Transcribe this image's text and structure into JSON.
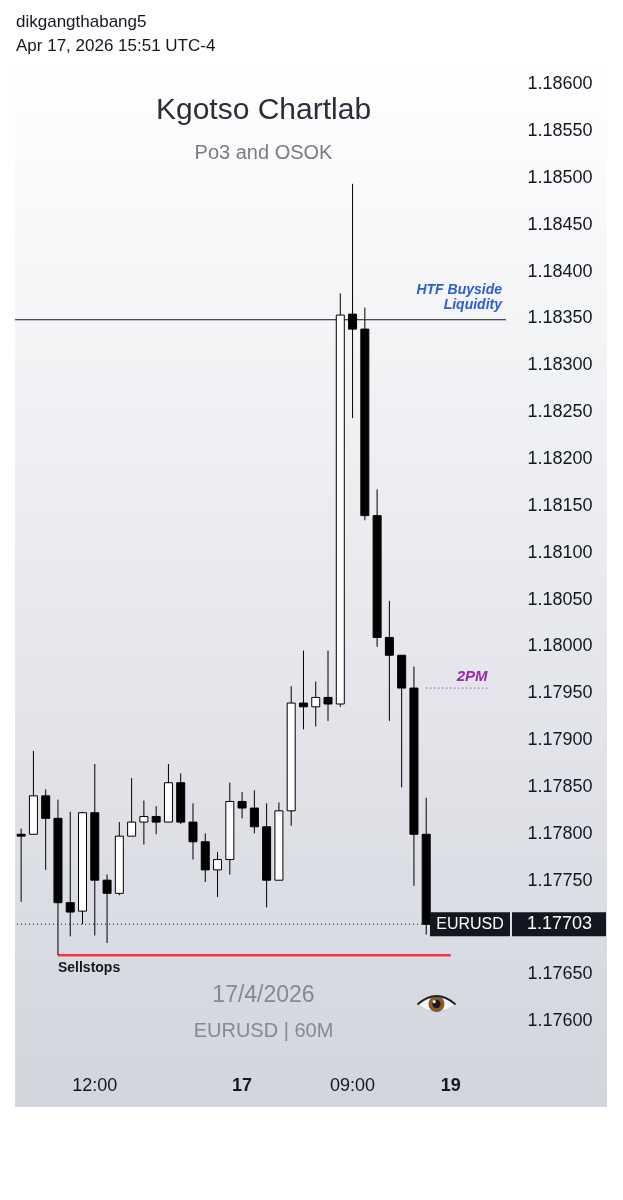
{
  "chart_data": {
    "type": "candlestick",
    "title": "Kgotso Chartlab",
    "subtitle": "Po3 and OSOK",
    "annotations": [
      "dikgangthabang5",
      "Apr 17, 2026 15:51 UTC-4",
      "17/4/2026",
      "EURUSD | 60M",
      "1.17703",
      "Sellstops"
    ],
    "categories": [
      null,
      null,
      null,
      null,
      null,
      null,
      "12:00",
      null,
      null,
      null,
      null,
      null,
      null,
      null,
      null,
      null,
      null,
      null,
      "17",
      null,
      null,
      null,
      null,
      null,
      null,
      null,
      null,
      "09:00",
      null,
      null,
      null,
      null,
      null,
      null,
      null,
      "19",
      null,
      null,
      null,
      null
    ],
    "ohlc": [
      [
        1.17799,
        1.17805,
        1.17727,
        1.17797
      ],
      [
        1.17799,
        1.17888,
        1.17799,
        1.1784
      ],
      [
        1.1784,
        1.17847,
        1.17761,
        1.17816
      ],
      [
        1.17816,
        1.17836,
        1.1767,
        1.17726
      ],
      [
        1.17726,
        1.17823,
        1.1769,
        1.17716
      ],
      [
        1.17717,
        1.17823,
        1.17703,
        1.17822
      ],
      [
        1.17822,
        1.17874,
        1.17691,
        1.1775
      ],
      [
        1.1775,
        1.17756,
        1.17683,
        1.17736
      ],
      [
        1.17736,
        1.17812,
        1.17734,
        1.17797
      ],
      [
        1.17797,
        1.17859,
        1.17797,
        1.17812
      ],
      [
        1.17812,
        1.17835,
        1.17788,
        1.17818
      ],
      [
        1.17818,
        1.17829,
        1.17799,
        1.17812
      ],
      [
        1.17812,
        1.17874,
        1.17812,
        1.17854
      ],
      [
        1.17854,
        1.17864,
        1.1781,
        1.17812
      ],
      [
        1.17812,
        1.17832,
        1.17772,
        1.17791
      ],
      [
        1.17791,
        1.178,
        1.17748,
        1.17761
      ],
      [
        1.17761,
        1.1778,
        1.17732,
        1.17772
      ],
      [
        1.17772,
        1.17854,
        1.17756,
        1.17834
      ],
      [
        1.17834,
        1.17844,
        1.17816,
        1.17827
      ],
      [
        1.17827,
        1.17846,
        1.178,
        1.17807
      ],
      [
        1.17807,
        1.17832,
        1.17721,
        1.1775
      ],
      [
        1.1775,
        1.17833,
        1.1775,
        1.17824
      ],
      [
        1.17824,
        1.17957,
        1.17808,
        1.17939
      ],
      [
        1.17939,
        1.17995,
        1.17911,
        1.17935
      ],
      [
        1.17935,
        1.17962,
        1.17914,
        1.17945
      ],
      [
        1.17945,
        1.17995,
        1.1792,
        1.17938
      ],
      [
        1.17938,
        1.18376,
        1.17935,
        1.18353
      ],
      [
        1.18354,
        1.18493,
        1.18243,
        1.18338
      ],
      [
        1.18338,
        1.18361,
        1.18134,
        1.18139
      ],
      [
        1.18139,
        1.18167,
        1.17999,
        1.18009
      ],
      [
        1.18009,
        1.18048,
        1.1792,
        1.1799
      ],
      [
        1.1799,
        1.1799,
        1.17849,
        1.17955
      ],
      [
        1.17955,
        1.17978,
        1.17744,
        1.17799
      ],
      [
        1.17799,
        1.17838,
        1.17692,
        1.17703
      ],
      null,
      null,
      null,
      null,
      null,
      null
    ],
    "colors": [
      "#000000",
      "#ffffff",
      "#000000",
      "#000000",
      "#000000",
      "#ffffff",
      "#000000",
      "#000000",
      "#ffffff",
      "#ffffff",
      "#ffffff",
      "#000000",
      "#ffffff",
      "#000000",
      "#000000",
      "#000000",
      "#ffffff",
      "#ffffff",
      "#000000",
      "#000000",
      "#000000",
      "#ffffff",
      "#ffffff",
      "#000000",
      "#ffffff",
      "#000000",
      "#ffffff",
      "#000000",
      "#000000",
      "#000000",
      "#000000",
      "#000000",
      "#000000",
      "#000000",
      null,
      null,
      null,
      null,
      null,
      null
    ],
    "series": [
      {
        "type": "line",
        "color": "#f23645",
        "values": [
          null,
          null,
          null,
          1.1767,
          1.1767,
          1.1767,
          1.1767,
          1.1767,
          1.1767,
          1.1767,
          1.1767,
          1.1767,
          1.1767,
          1.1767,
          1.1767,
          1.1767,
          1.1767,
          1.1767,
          1.1767,
          1.1767,
          1.1767,
          1.1767,
          1.1767,
          1.1767,
          1.1767,
          1.1767,
          1.1767,
          1.1767,
          1.1767,
          1.1767,
          1.1767,
          1.1767,
          1.1767,
          1.1767,
          1.1767,
          1.1767,
          null,
          null,
          null,
          null
        ]
      },
      {
        "type": "line",
        "name": "2PM",
        "color": "#9c27b0",
        "line_style": "dotted",
        "values": [
          null,
          null,
          null,
          null,
          null,
          null,
          null,
          null,
          null,
          null,
          null,
          null,
          null,
          null,
          null,
          null,
          null,
          null,
          null,
          null,
          null,
          null,
          null,
          null,
          null,
          null,
          null,
          null,
          null,
          null,
          null,
          null,
          null,
          1.17955,
          1.17955,
          1.17955,
          1.17955,
          1.17955,
          1.17955,
          null
        ]
      }
    ],
    "ref_lines": [
      {
        "axis": "y",
        "value": 1.18348,
        "label": "HTF Buyside Liquidity",
        "color": "#131722"
      },
      {
        "axis": "y",
        "value": 1.17703,
        "label": "EURUSD",
        "color": "#131722",
        "line_style": "dotted"
      }
    ],
    "ylim": [
      1.17508,
      1.18623
    ],
    "yticks": [
      {
        "value": 1.176,
        "label": "1.17600"
      },
      {
        "value": 1.1765,
        "label": "1.17650"
      },
      {
        "value": 1.1775,
        "label": "1.17750"
      },
      {
        "value": 1.178,
        "label": "1.17800"
      },
      {
        "value": 1.1785,
        "label": "1.17850"
      },
      {
        "value": 1.179,
        "label": "1.17900"
      },
      {
        "value": 1.1795,
        "label": "1.17950"
      },
      {
        "value": 1.18,
        "label": "1.18000"
      },
      {
        "value": 1.1805,
        "label": "1.18050"
      },
      {
        "value": 1.181,
        "label": "1.18100"
      },
      {
        "value": 1.1815,
        "label": "1.18150"
      },
      {
        "value": 1.182,
        "label": "1.18200"
      },
      {
        "value": 1.1825,
        "label": "1.18250"
      },
      {
        "value": 1.183,
        "label": "1.18300"
      },
      {
        "value": 1.1835,
        "label": "1.18350"
      },
      {
        "value": 1.184,
        "label": "1.18400"
      },
      {
        "value": 1.1845,
        "label": "1.18450"
      },
      {
        "value": 1.185,
        "label": "1.18500"
      },
      {
        "value": 1.1855,
        "label": "1.18550"
      },
      {
        "value": 1.186,
        "label": "1.18600"
      }
    ]
  }
}
